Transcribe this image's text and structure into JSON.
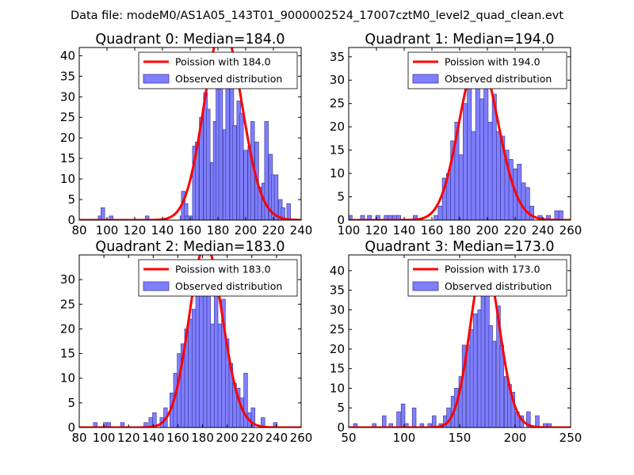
{
  "suptitle": "Data file: modeM0/AS1A05_143T01_9000002524_17007cztM0_level2_quad_clean.evt",
  "colors": {
    "bar": "#7f7fff",
    "barEdge": "#3f3f9f",
    "line": "#ff0000"
  },
  "chart_data": [
    {
      "type": "bar",
      "title": "Quadrant 0: Median=184.0",
      "median": 184.0,
      "xlim": [
        80,
        240
      ],
      "ylim": [
        0,
        42
      ],
      "xticks": [
        80,
        100,
        120,
        140,
        160,
        180,
        200,
        220,
        240
      ],
      "yticks": [
        0,
        5,
        10,
        15,
        20,
        25,
        30,
        35,
        40
      ],
      "legend": [
        "Poission with 184.0",
        "Observed distribution"
      ],
      "legend_loc": "upper right",
      "bin_width": 2.7,
      "bins": [
        [
          95,
          1
        ],
        [
          97,
          3
        ],
        [
          103,
          1
        ],
        [
          129,
          1
        ],
        [
          154,
          1
        ],
        [
          155,
          7
        ],
        [
          157,
          4
        ],
        [
          158,
          1
        ],
        [
          160,
          1
        ],
        [
          163,
          18
        ],
        [
          165,
          19
        ],
        [
          168,
          25
        ],
        [
          171,
          31
        ],
        [
          173,
          27
        ],
        [
          176,
          14
        ],
        [
          178,
          24
        ],
        [
          180,
          32
        ],
        [
          182,
          38
        ],
        [
          185,
          22
        ],
        [
          187,
          40
        ],
        [
          190,
          33
        ],
        [
          192,
          23
        ],
        [
          195,
          29
        ],
        [
          197,
          26
        ],
        [
          200,
          17
        ],
        [
          203,
          18
        ],
        [
          205,
          24
        ],
        [
          208,
          19
        ],
        [
          210,
          8
        ],
        [
          213,
          9
        ],
        [
          215,
          24
        ],
        [
          218,
          16
        ],
        [
          220,
          11
        ],
        [
          222,
          11
        ],
        [
          225,
          5
        ],
        [
          227,
          3
        ],
        [
          231,
          4
        ]
      ]
    },
    {
      "type": "bar",
      "title": "Quadrant 1: Median=194.0",
      "median": 194.0,
      "xlim": [
        100,
        260
      ],
      "ylim": [
        0,
        37
      ],
      "xticks": [
        100,
        120,
        140,
        160,
        180,
        200,
        220,
        240,
        260
      ],
      "yticks": [
        0,
        5,
        10,
        15,
        20,
        25,
        30,
        35
      ],
      "legend": [
        "Poission with 194.0",
        "Observed distribution"
      ],
      "legend_loc": "upper right",
      "bin_width": 3.0,
      "bins": [
        [
          101,
          1
        ],
        [
          110,
          1
        ],
        [
          115,
          1
        ],
        [
          121,
          1
        ],
        [
          127,
          1
        ],
        [
          130,
          1
        ],
        [
          133,
          1
        ],
        [
          136,
          1
        ],
        [
          148,
          1
        ],
        [
          163,
          1
        ],
        [
          166,
          3
        ],
        [
          169,
          9
        ],
        [
          172,
          10
        ],
        [
          175,
          17
        ],
        [
          178,
          21
        ],
        [
          181,
          14
        ],
        [
          184,
          25
        ],
        [
          187,
          31
        ],
        [
          190,
          19
        ],
        [
          193,
          32
        ],
        [
          196,
          26
        ],
        [
          199,
          29
        ],
        [
          202,
          21
        ],
        [
          205,
          27
        ],
        [
          208,
          19
        ],
        [
          211,
          18
        ],
        [
          214,
          15
        ],
        [
          217,
          13
        ],
        [
          220,
          11
        ],
        [
          223,
          12
        ],
        [
          226,
          8
        ],
        [
          229,
          7
        ],
        [
          232,
          3
        ],
        [
          238,
          1
        ],
        [
          244,
          1
        ],
        [
          250,
          2
        ],
        [
          253,
          2
        ]
      ]
    },
    {
      "type": "bar",
      "title": "Quadrant 2: Median=183.0",
      "median": 183.0,
      "xlim": [
        80,
        260
      ],
      "ylim": [
        0,
        35
      ],
      "xticks": [
        80,
        100,
        120,
        140,
        160,
        180,
        200,
        220,
        240,
        260
      ],
      "yticks": [
        0,
        5,
        10,
        15,
        20,
        25,
        30
      ],
      "legend": [
        "Poission with 183.0",
        "Observed distribution"
      ],
      "legend_loc": "upper right",
      "bin_width": 3.0,
      "bins": [
        [
          93,
          1
        ],
        [
          101,
          1
        ],
        [
          104,
          1
        ],
        [
          115,
          1
        ],
        [
          134,
          1
        ],
        [
          138,
          2
        ],
        [
          141,
          3
        ],
        [
          147,
          2
        ],
        [
          150,
          4
        ],
        [
          155,
          7
        ],
        [
          158,
          11
        ],
        [
          161,
          15
        ],
        [
          164,
          17
        ],
        [
          167,
          20
        ],
        [
          170,
          22
        ],
        [
          173,
          24
        ],
        [
          176,
          27
        ],
        [
          179,
          31
        ],
        [
          182,
          28
        ],
        [
          185,
          30
        ],
        [
          188,
          21
        ],
        [
          191,
          28
        ],
        [
          194,
          21
        ],
        [
          197,
          26
        ],
        [
          200,
          18
        ],
        [
          203,
          13
        ],
        [
          206,
          9
        ],
        [
          209,
          8
        ],
        [
          212,
          6
        ],
        [
          215,
          11
        ],
        [
          218,
          3
        ],
        [
          221,
          4
        ],
        [
          229,
          2
        ],
        [
          239,
          1
        ]
      ]
    },
    {
      "type": "bar",
      "title": "Quadrant 3: Median=173.0",
      "median": 173.0,
      "xlim": [
        50,
        250
      ],
      "ylim": [
        0,
        44
      ],
      "xticks": [
        50,
        100,
        150,
        200,
        250
      ],
      "yticks": [
        0,
        5,
        10,
        15,
        20,
        25,
        30,
        35,
        40
      ],
      "legend": [
        "Poission with 173.0",
        "Observed distribution"
      ],
      "legend_loc": "upper right",
      "bin_width": 3.4,
      "bins": [
        [
          56,
          1
        ],
        [
          73,
          1
        ],
        [
          82,
          3
        ],
        [
          88,
          1
        ],
        [
          95,
          4
        ],
        [
          99,
          6
        ],
        [
          102,
          1
        ],
        [
          109,
          5
        ],
        [
          116,
          1
        ],
        [
          123,
          1
        ],
        [
          127,
          3
        ],
        [
          133,
          1
        ],
        [
          137,
          3
        ],
        [
          140,
          5
        ],
        [
          144,
          8
        ],
        [
          147,
          10
        ],
        [
          151,
          13
        ],
        [
          154,
          21
        ],
        [
          158,
          21
        ],
        [
          161,
          25
        ],
        [
          164,
          29
        ],
        [
          168,
          30
        ],
        [
          171,
          36
        ],
        [
          175,
          35
        ],
        [
          178,
          26
        ],
        [
          181,
          22
        ],
        [
          185,
          31
        ],
        [
          188,
          21
        ],
        [
          192,
          13
        ],
        [
          195,
          11
        ],
        [
          198,
          9
        ],
        [
          202,
          4
        ],
        [
          206,
          3
        ],
        [
          212,
          4
        ],
        [
          220,
          3
        ],
        [
          227,
          1
        ],
        [
          231,
          1
        ]
      ]
    }
  ]
}
